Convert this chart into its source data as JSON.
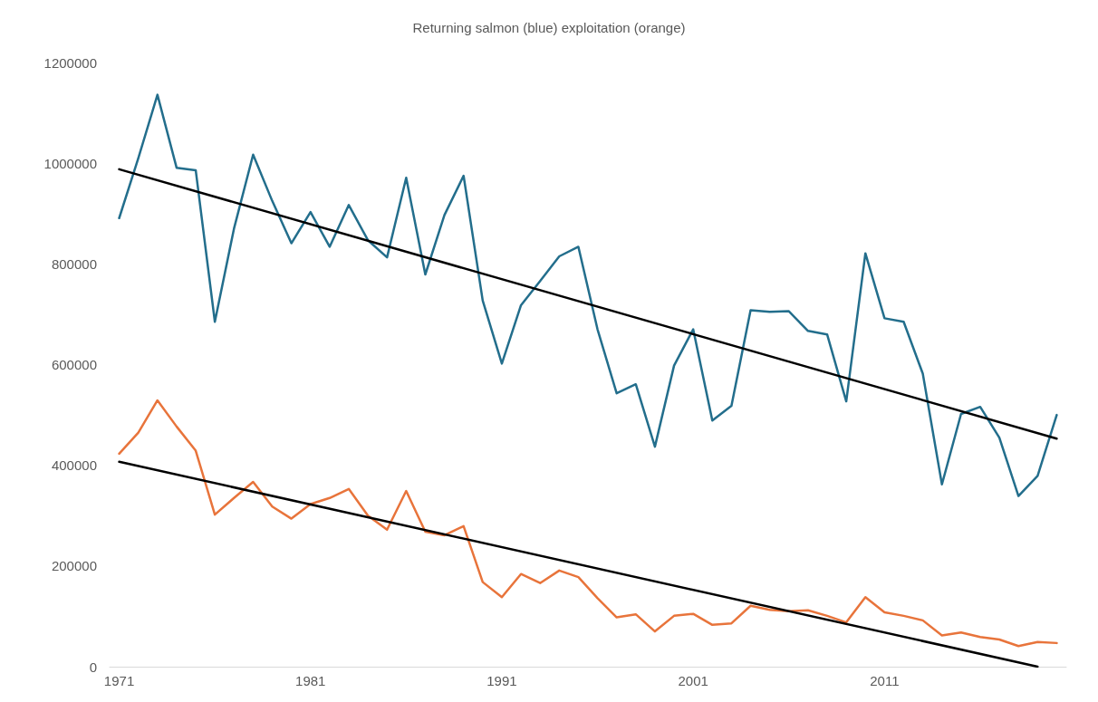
{
  "chart_data": {
    "type": "line",
    "title": "Returning salmon (blue) exploitation (orange)",
    "x": [
      1971,
      1972,
      1973,
      1974,
      1975,
      1976,
      1977,
      1978,
      1979,
      1980,
      1981,
      1982,
      1983,
      1984,
      1985,
      1986,
      1987,
      1988,
      1989,
      1990,
      1991,
      1992,
      1993,
      1994,
      1995,
      1996,
      1997,
      1998,
      1999,
      2000,
      2001,
      2002,
      2003,
      2004,
      2005,
      2006,
      2007,
      2008,
      2009,
      2010,
      2011,
      2012,
      2013,
      2014,
      2015,
      2016,
      2017,
      2018,
      2019,
      2020
    ],
    "series": [
      {
        "color": "#236e8c",
        "values": [
          891000,
          1010000,
          1136000,
          991000,
          986000,
          685000,
          870000,
          1017000,
          925000,
          841000,
          903000,
          834000,
          917000,
          847000,
          813000,
          971000,
          779000,
          897000,
          975000,
          727000,
          602000,
          718000,
          766000,
          815000,
          834000,
          670000,
          543000,
          561000,
          437000,
          598000,
          670000,
          489000,
          518000,
          708000,
          705000,
          706000,
          667000,
          660000,
          527000,
          821000,
          692000,
          685000,
          582000,
          362000,
          502000,
          516000,
          455000,
          339000,
          379000,
          500000
        ]
      },
      {
        "color": "#e8743b",
        "values": [
          423000,
          465000,
          529000,
          477000,
          429000,
          302000,
          335000,
          367000,
          318000,
          294000,
          323000,
          335000,
          353000,
          300000,
          272000,
          349000,
          268000,
          261000,
          279000,
          168000,
          138000,
          184000,
          166000,
          191000,
          178000,
          136000,
          98000,
          104000,
          70000,
          101000,
          105000,
          83000,
          86000,
          121000,
          113000,
          110000,
          112000,
          101000,
          88000,
          138000,
          108000,
          101000,
          92000,
          62000,
          68000,
          59000,
          54000,
          41000,
          49000,
          47000
        ]
      },
      {
        "type": "line",
        "color": "#000000",
        "x": [
          1971,
          2020
        ],
        "values": [
          988000,
          453000
        ]
      },
      {
        "type": "line",
        "color": "#000000",
        "x": [
          1971,
          2019
        ],
        "values": [
          407000,
          0
        ]
      }
    ],
    "xlim": [
      1970.5,
      2020.5
    ],
    "xticks": [
      1971,
      1981,
      1991,
      2001,
      2011
    ],
    "ylim": [
      0,
      1200000
    ],
    "yticks": [
      0,
      200000,
      400000,
      600000,
      800000,
      1000000,
      1200000
    ],
    "grid": false,
    "marker": "none",
    "line_style": "solid"
  }
}
